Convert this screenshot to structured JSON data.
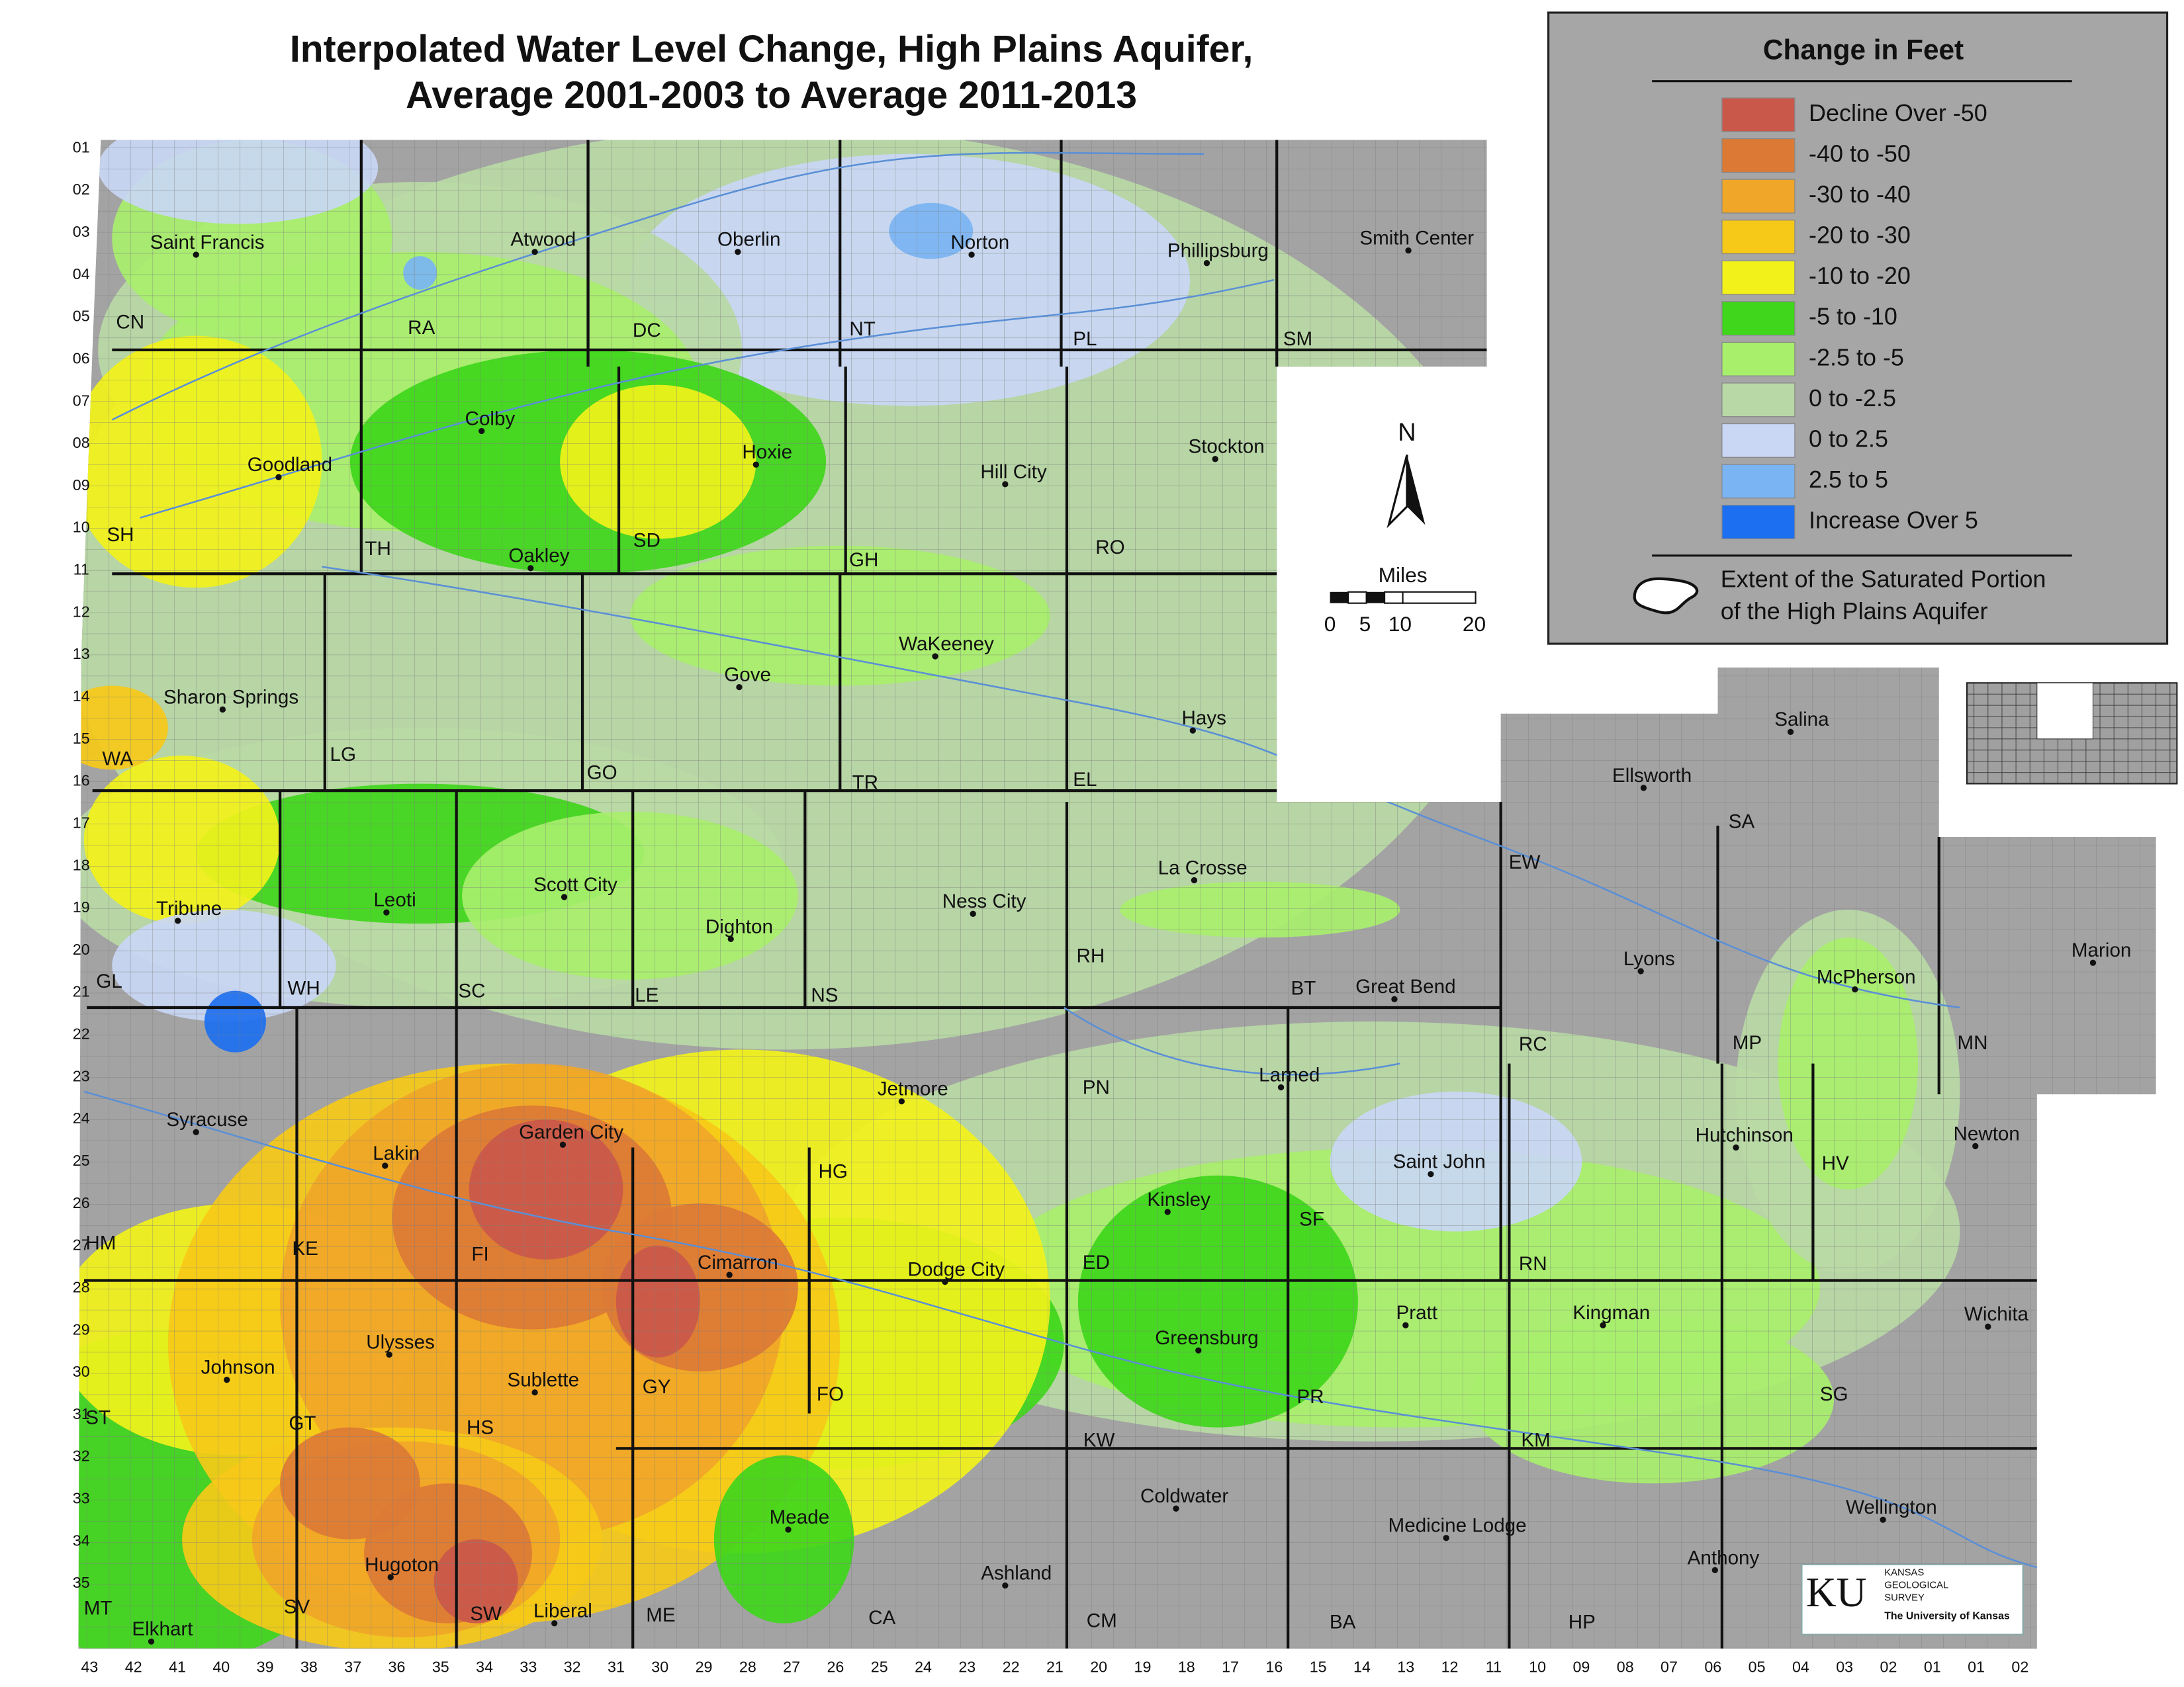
{
  "title": [
    "Interpolated Water Level Change, High Plains Aquifer,",
    "Average 2001-2003 to Average 2011-2013"
  ],
  "legend": {
    "title": "Change in Feet",
    "items": [
      {
        "label": "Decline Over -50",
        "color": "#c9584a"
      },
      {
        "label": "-40 to -50",
        "color": "#dc7a35"
      },
      {
        "label": "-30 to -40",
        "color": "#f0a628"
      },
      {
        "label": "-20 to -30",
        "color": "#f6c918"
      },
      {
        "label": "-10 to -20",
        "color": "#f2f21a"
      },
      {
        "label": "-5 to -10",
        "color": "#3fd61b"
      },
      {
        "label": "-2.5 to -5",
        "color": "#a8ef6c"
      },
      {
        "label": "0 to -2.5",
        "color": "#b8d9a5"
      },
      {
        "label": "0 to 2.5",
        "color": "#c9d7f5"
      },
      {
        "label": "2.5 to 5",
        "color": "#7ab4f3"
      },
      {
        "label": "Increase Over 5",
        "color": "#1c6ff0"
      }
    ],
    "extent_label": [
      "Extent of the Saturated Portion",
      "of the High Plains Aquifer"
    ]
  },
  "north": "N",
  "scale": {
    "title": "Miles",
    "labels": [
      "0",
      "5",
      "10",
      "20"
    ]
  },
  "cities": [
    "Saint Francis",
    "Atwood",
    "Oberlin",
    "Norton",
    "Phillipsburg",
    "Smith Center",
    "Goodland",
    "Colby",
    "Hoxie",
    "Hill City",
    "Stockton",
    "Oakley",
    "WaKeeney",
    "Gove",
    "Hays",
    "Sharon Springs",
    "Salina",
    "Ellsworth",
    "Scott City",
    "Leoti",
    "Tribune",
    "Dighton",
    "Ness City",
    "La Crosse",
    "Great Bend",
    "Lyons",
    "McPherson",
    "Marion",
    "Jetmore",
    "Larned",
    "Syracuse",
    "Garden City",
    "Lakin",
    "Hutchinson",
    "Newton",
    "Saint John",
    "Kinsley",
    "Cimarron",
    "Dodge City",
    "Kingman",
    "Pratt",
    "Wichita",
    "Ulysses",
    "Greensburg",
    "Johnson",
    "Sublette",
    "Meade",
    "Coldwater",
    "Medicine Lodge",
    "Wellington",
    "Hugoton",
    "Anthony",
    "Ashland",
    "Liberal",
    "Elkhart"
  ],
  "counties": [
    "CN",
    "RA",
    "DC",
    "NT",
    "PL",
    "SM",
    "SH",
    "TH",
    "SD",
    "GH",
    "RO",
    "WA",
    "LG",
    "GO",
    "TR",
    "EL",
    "GL",
    "WH",
    "SC",
    "LE",
    "NS",
    "RH",
    "BT",
    "RC",
    "MP",
    "MN",
    "PN",
    "HM",
    "KE",
    "FI",
    "HG",
    "ED",
    "SF",
    "RN",
    "HV",
    "GY",
    "FO",
    "GT",
    "HS",
    "ST",
    "PR",
    "KW",
    "KM",
    "SG",
    "MT",
    "SV",
    "SW",
    "ME",
    "CA",
    "CM",
    "BA",
    "HP",
    "SA",
    "EW"
  ],
  "townships": [
    "01",
    "02",
    "03",
    "04",
    "05",
    "06",
    "07",
    "08",
    "09",
    "10",
    "11",
    "12",
    "13",
    "14",
    "15",
    "16",
    "17",
    "18",
    "19",
    "20",
    "21",
    "22",
    "23",
    "24",
    "25",
    "26",
    "27",
    "28",
    "29",
    "30",
    "31",
    "32",
    "33",
    "34",
    "35"
  ],
  "ranges": [
    "43",
    "42",
    "41",
    "40",
    "39",
    "38",
    "37",
    "36",
    "35",
    "34",
    "33",
    "32",
    "31",
    "30",
    "29",
    "28",
    "27",
    "26",
    "25",
    "24",
    "23",
    "22",
    "21",
    "20",
    "19",
    "18",
    "17",
    "16",
    "15",
    "14",
    "13",
    "12",
    "11",
    "10",
    "09",
    "08",
    "07",
    "06",
    "05",
    "04",
    "03",
    "02",
    "01",
    "01",
    "02"
  ],
  "logo": {
    "mark": "KU",
    "lines": [
      "KANSAS",
      "GEOLOGICAL",
      "SURVEY",
      "The University of Kansas"
    ]
  }
}
